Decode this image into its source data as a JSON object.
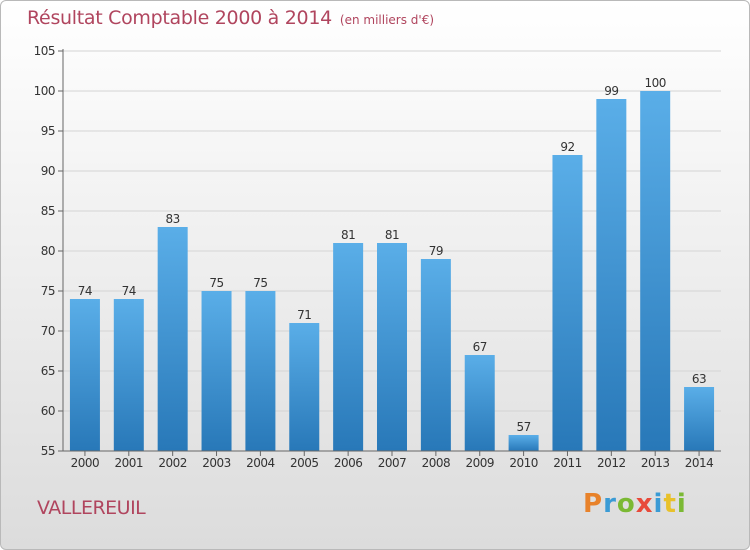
{
  "header": {
    "title": "Résultat Comptable 2000 à 2014",
    "subtitle": "(en milliers d'€)"
  },
  "footer": {
    "commune": "VALLEREUIL",
    "brand": "Proxiti",
    "brand_letter_colors": [
      "#e8822a",
      "#3a9bd5",
      "#7bb934",
      "#e84a3a",
      "#3a9bd5",
      "#e8c12a",
      "#7bb934"
    ]
  },
  "colors": {
    "title": "#b0455e",
    "bar_top": "#5aaee8",
    "bar_bottom": "#2878b8",
    "axis": "#666666",
    "grid": "#d4d4d4"
  },
  "chart_data": {
    "type": "bar",
    "title": "Résultat Comptable 2000 à 2014",
    "subtitle": "(en milliers d'€)",
    "categories": [
      "2000",
      "2001",
      "2002",
      "2003",
      "2004",
      "2005",
      "2006",
      "2007",
      "2008",
      "2009",
      "2010",
      "2011",
      "2012",
      "2013",
      "2014"
    ],
    "values": [
      74,
      74,
      83,
      75,
      75,
      71,
      81,
      81,
      79,
      67,
      57,
      92,
      99,
      100,
      63
    ],
    "ylim": [
      55,
      105
    ],
    "yticks": [
      55,
      60,
      65,
      70,
      75,
      80,
      85,
      90,
      95,
      100,
      105
    ],
    "grid": true,
    "legend": "none",
    "data_labels": true
  }
}
